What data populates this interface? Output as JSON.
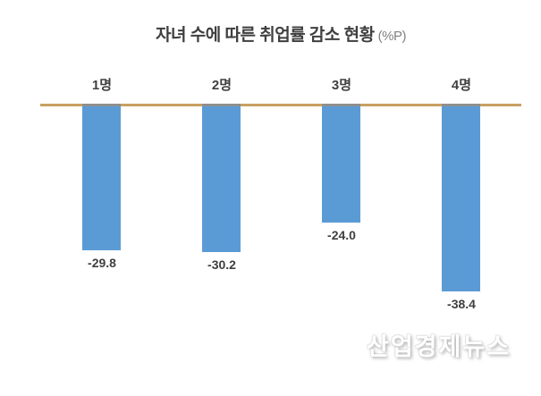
{
  "chart_data": {
    "type": "bar",
    "title": "자녀 수에 따른 취업률 감소 현황",
    "title_suffix": "(%P)",
    "categories": [
      "1명",
      "2명",
      "3명",
      "4명"
    ],
    "values": [
      -29.8,
      -30.2,
      -24.0,
      -38.4
    ],
    "value_labels": [
      "-29.8",
      "-30.2",
      "-24.0",
      "-38.4"
    ],
    "xlabel": "",
    "ylabel": "",
    "ylim": [
      -40,
      0
    ],
    "grid": false,
    "legend": "none",
    "bar_color": "#5b9bd5",
    "bar_cap_color": "#8f8f8f",
    "axis_line_color": "#c9a063",
    "orientation": "vertical-negative"
  },
  "watermark": {
    "text": "산업경제뉴스"
  }
}
